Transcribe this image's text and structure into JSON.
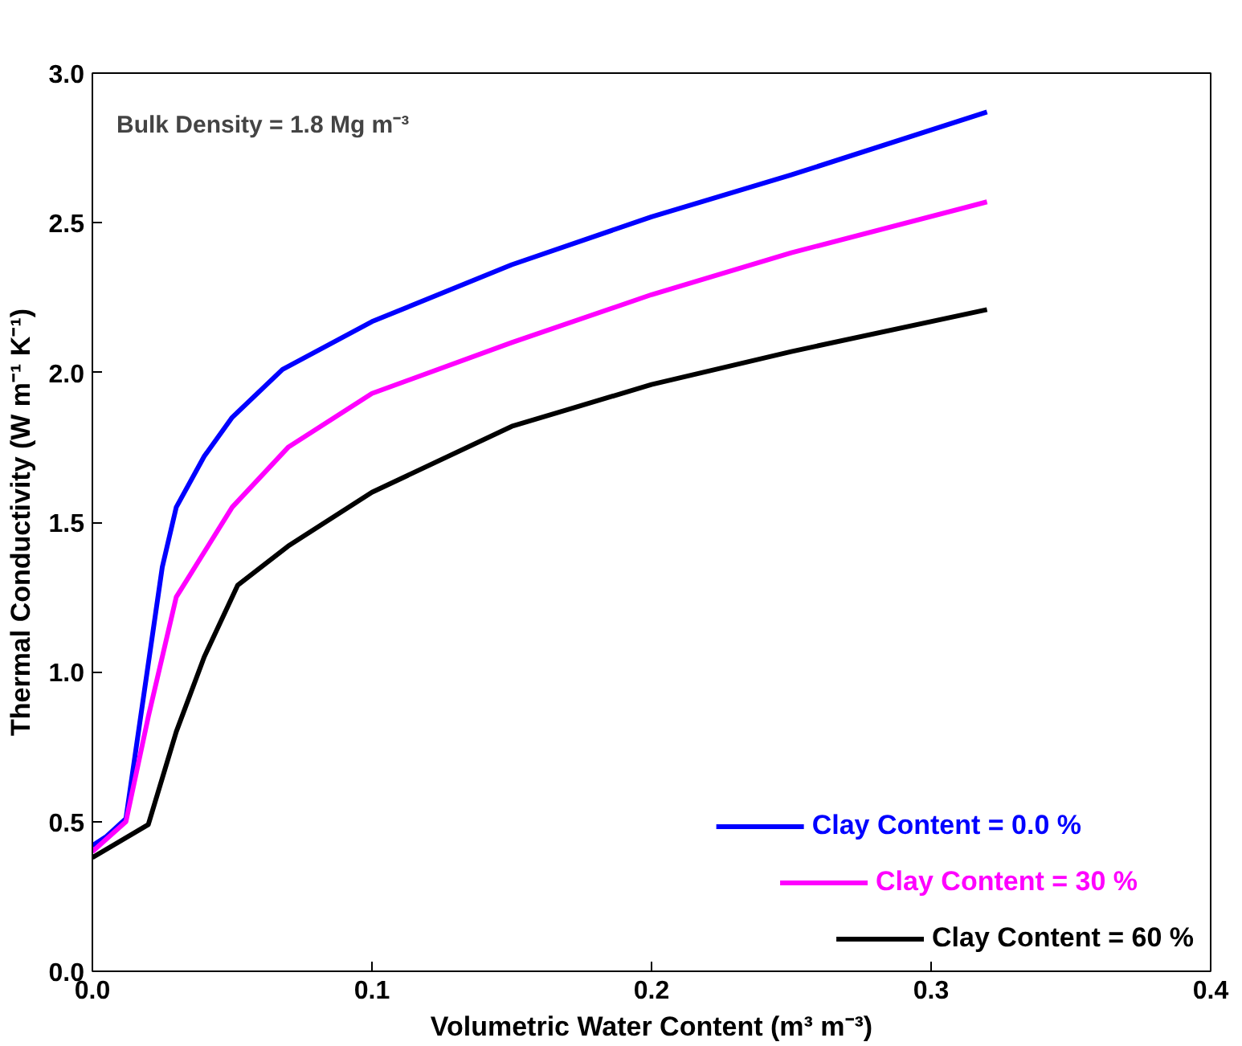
{
  "chart_data": {
    "type": "line",
    "xlabel": "Volumetric Water Content (m³ m⁻³)",
    "ylabel": "Thermal Conductivity (W m⁻¹ K⁻¹)",
    "annotations": [
      "Bulk Density = 1.8 Mg m⁻³"
    ],
    "xlim": [
      0,
      0.4
    ],
    "xticks": [
      {
        "value": 0,
        "label": "0.0"
      },
      0.1,
      0.2,
      0.3,
      0.4
    ],
    "ylim": [
      0,
      3
    ],
    "yticks": [
      {
        "value": 0,
        "label": "0.0"
      },
      0.5,
      {
        "value": 1,
        "label": "1.0"
      },
      1.5,
      {
        "value": 2,
        "label": "2.0"
      },
      2.5,
      {
        "value": 3,
        "label": "3.0"
      }
    ],
    "grid": false,
    "legend": "bottom right",
    "line_style": "solid",
    "series": [
      {
        "name": "Clay Content = 0.0 %",
        "color": "#0000ff",
        "x": [
          0,
          0.005,
          0.012,
          0.025,
          0.03,
          0.04,
          0.05,
          0.068,
          0.1,
          0.15,
          0.2,
          0.25,
          0.32
        ],
        "values": [
          0.42,
          0.45,
          0.51,
          1.35,
          1.55,
          1.72,
          1.85,
          2.01,
          2.17,
          2.36,
          2.52,
          2.66,
          2.87
        ]
      },
      {
        "name": "Clay Content = 30 %",
        "color": "#ff00ff",
        "x": [
          0,
          0.012,
          0.02,
          0.03,
          0.034,
          0.05,
          0.07,
          0.1,
          0.15,
          0.2,
          0.25,
          0.32
        ],
        "values": [
          0.4,
          0.5,
          0.85,
          1.25,
          1.31,
          1.55,
          1.75,
          1.93,
          2.1,
          2.26,
          2.4,
          2.57
        ]
      },
      {
        "name": "Clay Content = 60 %",
        "color": "#000000",
        "x": [
          0,
          0.02,
          0.03,
          0.04,
          0.052,
          0.07,
          0.1,
          0.15,
          0.2,
          0.25,
          0.32
        ],
        "values": [
          0.38,
          0.49,
          0.8,
          1.05,
          1.29,
          1.42,
          1.6,
          1.82,
          1.96,
          2.07,
          2.21
        ]
      }
    ]
  }
}
